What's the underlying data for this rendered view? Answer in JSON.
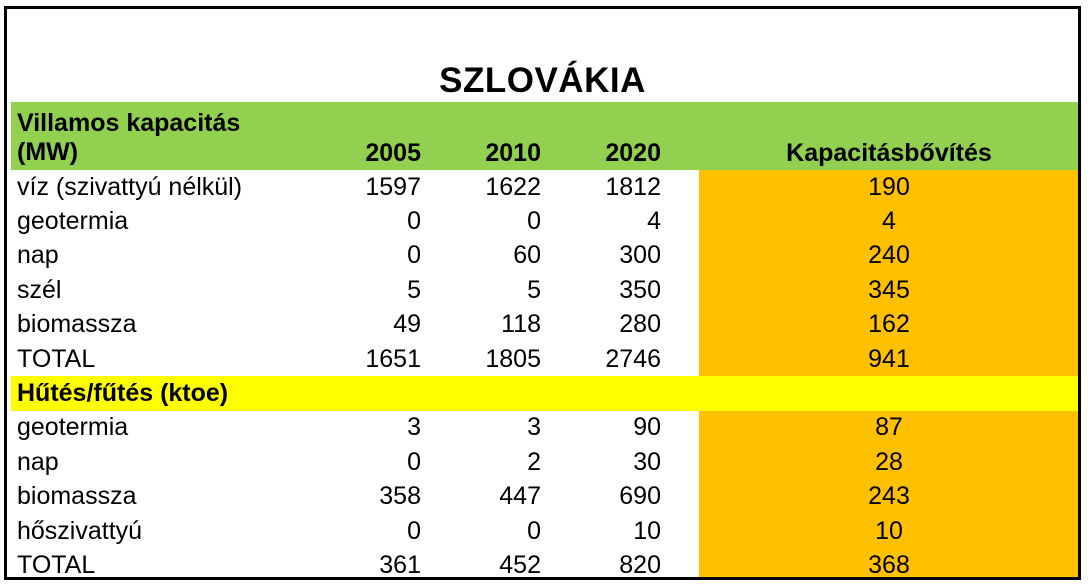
{
  "title": "SZLOVÁKIA",
  "colors": {
    "header_green": "#92d050",
    "section_yellow": "#ffff00",
    "capacity_orange": "#ffc000"
  },
  "electric": {
    "header_line1": "Villamos kapacitás",
    "header_line2": "(MW)",
    "years": [
      "2005",
      "2010",
      "2020"
    ],
    "capacity_header": "Kapacitásbővítés",
    "rows": [
      {
        "label": "víz (szivattyú nélkül)",
        "v2005": "1597",
        "v2010": "1622",
        "v2020": "1812",
        "cap": "190"
      },
      {
        "label": "geotermia",
        "v2005": "0",
        "v2010": "0",
        "v2020": "4",
        "cap": "4"
      },
      {
        "label": "nap",
        "v2005": "0",
        "v2010": "60",
        "v2020": "300",
        "cap": "240"
      },
      {
        "label": "szél",
        "v2005": "5",
        "v2010": "5",
        "v2020": "350",
        "cap": "345"
      },
      {
        "label": "biomassza",
        "v2005": "49",
        "v2010": "118",
        "v2020": "280",
        "cap": "162"
      },
      {
        "label": "TOTAL",
        "v2005": "1651",
        "v2010": "1805",
        "v2020": "2746",
        "cap": "941"
      }
    ]
  },
  "heating": {
    "header": "Hűtés/fűtés (ktoe)",
    "rows": [
      {
        "label": "geotermia",
        "v2005": "3",
        "v2010": "3",
        "v2020": "90",
        "cap": "87"
      },
      {
        "label": "nap",
        "v2005": "0",
        "v2010": "2",
        "v2020": "30",
        "cap": "28"
      },
      {
        "label": "biomassza",
        "v2005": "358",
        "v2010": "447",
        "v2020": "690",
        "cap": "243"
      },
      {
        "label": "hőszivattyú",
        "v2005": "0",
        "v2010": "0",
        "v2020": "10",
        "cap": "10"
      },
      {
        "label": "TOTAL",
        "v2005": "361",
        "v2010": "452",
        "v2020": "820",
        "cap": "368"
      }
    ]
  }
}
